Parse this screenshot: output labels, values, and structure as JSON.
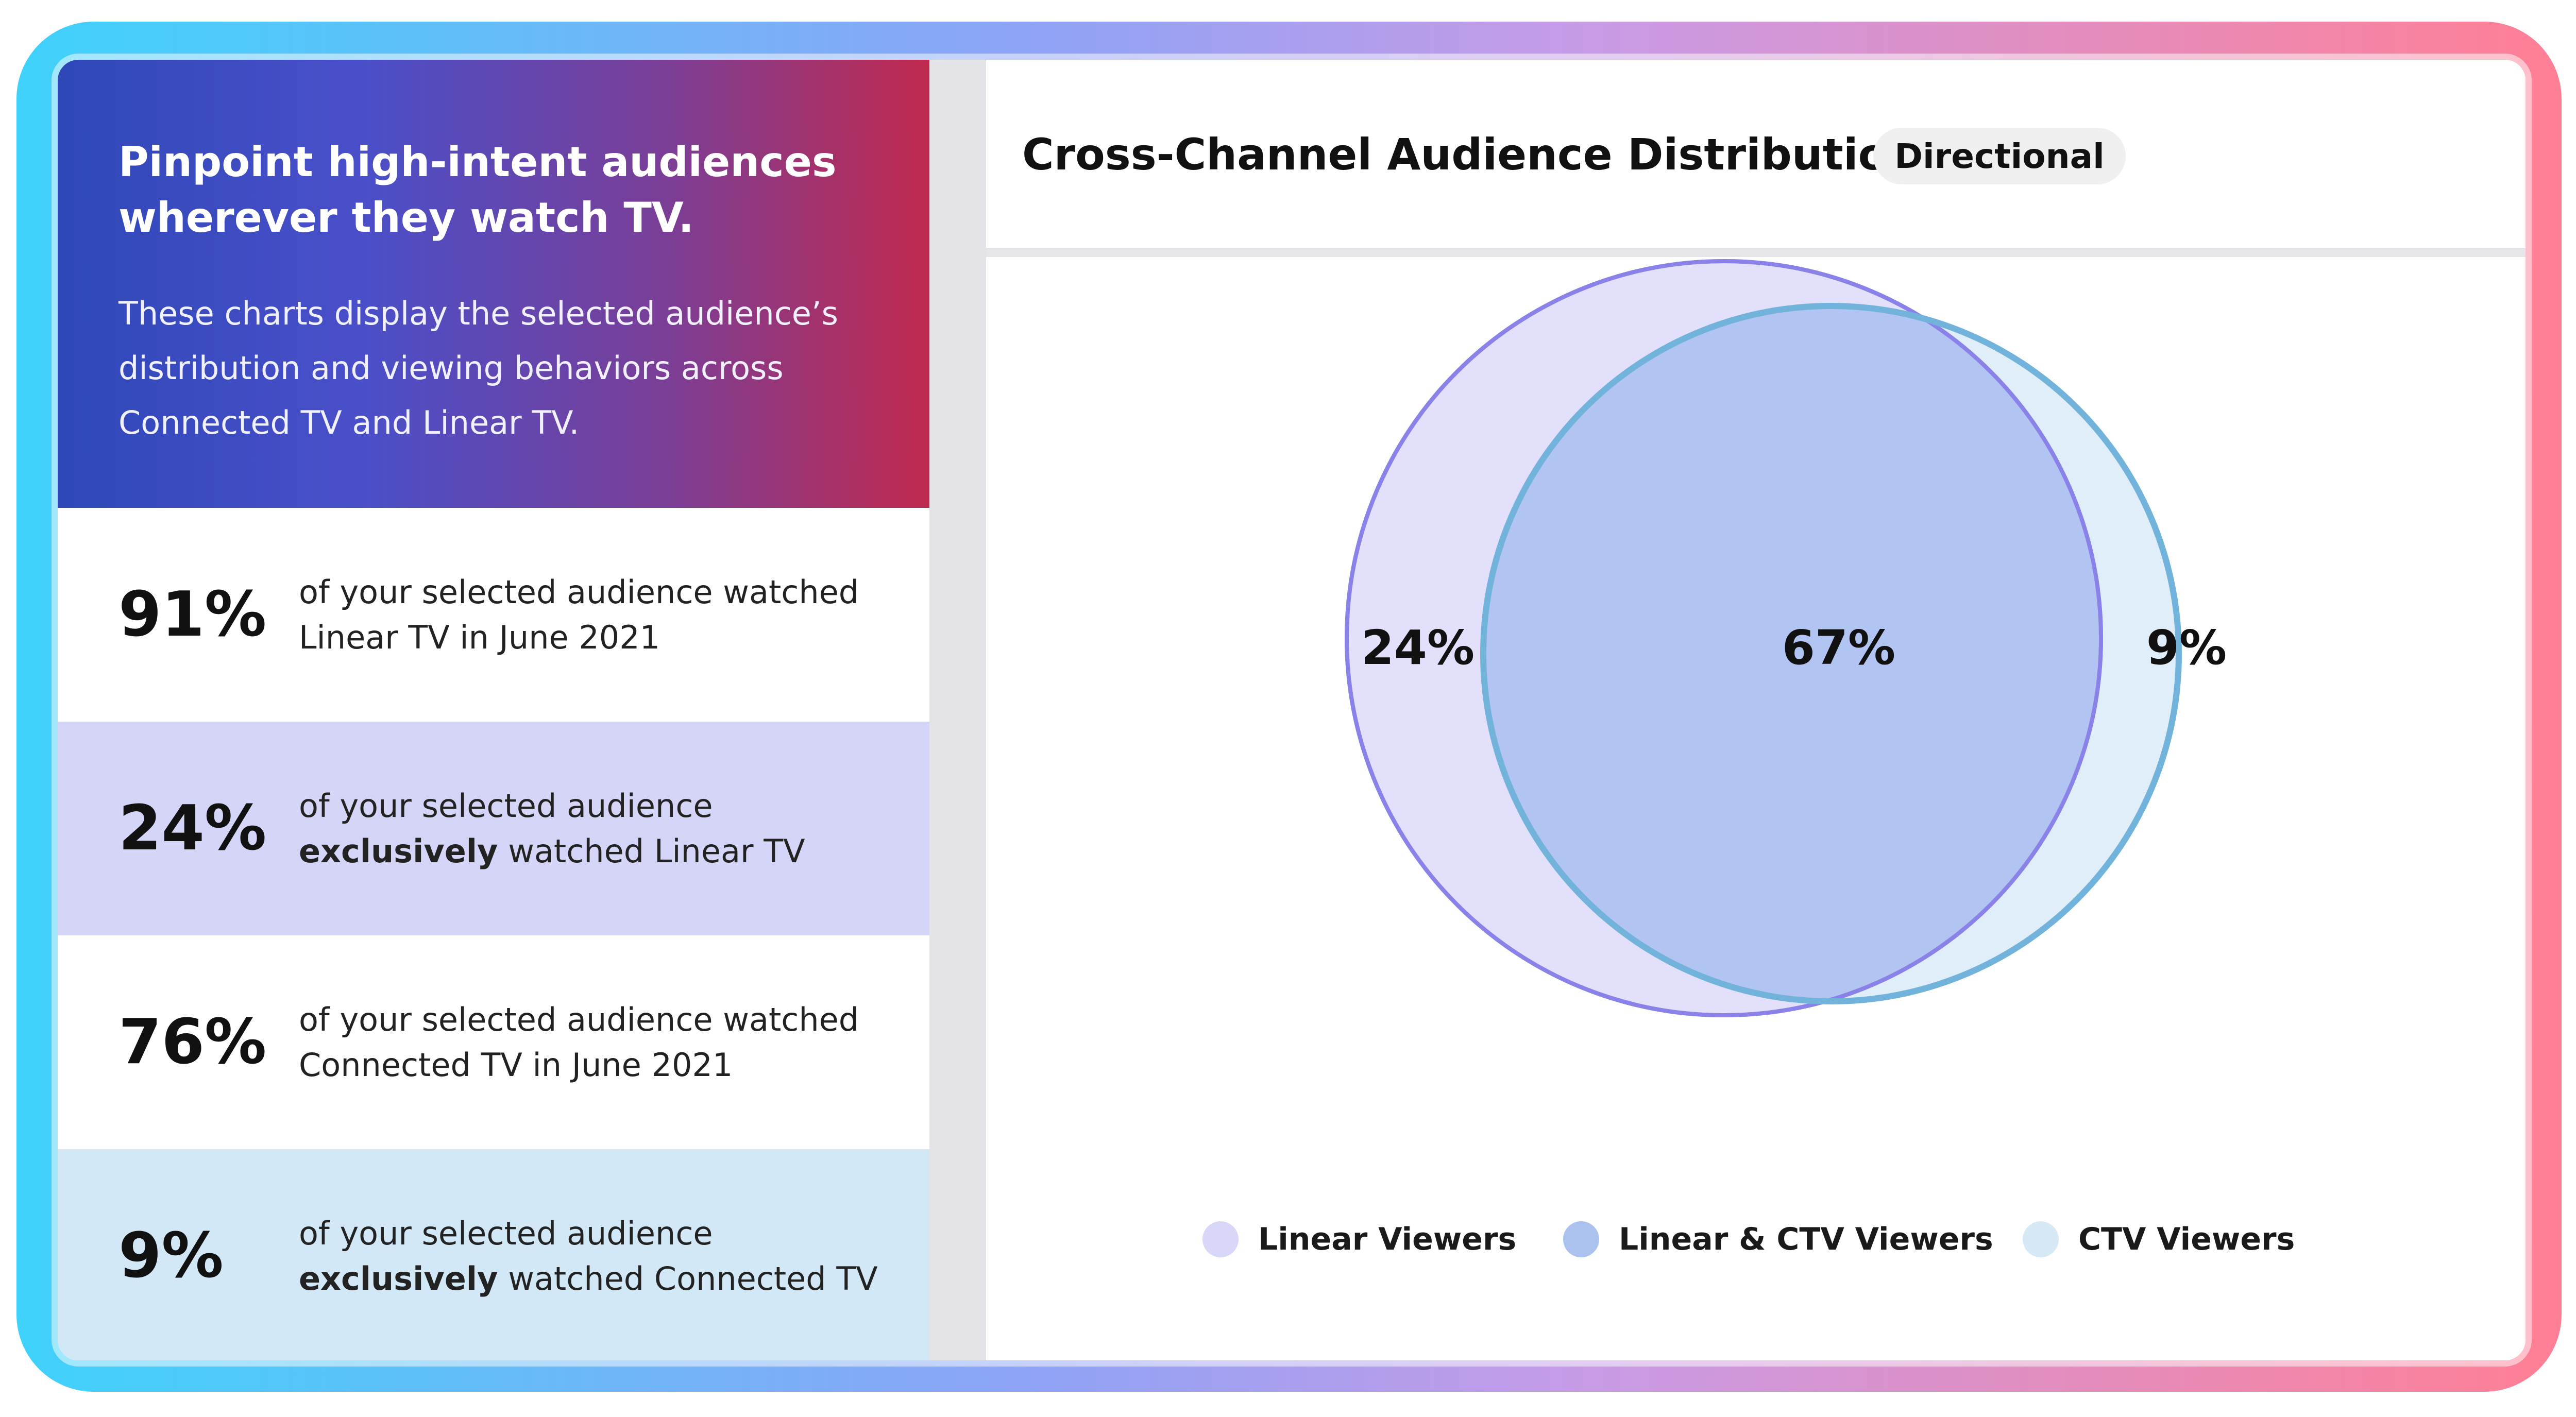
{
  "header": {
    "title": "Pinpoint high-intent audiences wherever they watch TV.",
    "description": "These charts display the selected audience’s distribution and viewing behaviors across Connected TV and Linear TV."
  },
  "stats": [
    {
      "value": "91%",
      "text_pre": "of your selected audience watched Linear TV in June 2021",
      "text_bold": "",
      "text_post": "",
      "bg": "#ffffff"
    },
    {
      "value": "24%",
      "text_pre": "of your selected audience ",
      "text_bold": "exclusively",
      "text_post": " watched Linear TV",
      "bg": "#d5d5f7"
    },
    {
      "value": "76%",
      "text_pre": "of your selected audience watched Connected TV in June 2021",
      "text_bold": "",
      "text_post": "",
      "bg": "#ffffff"
    },
    {
      "value": "9%",
      "text_pre": "of your selected audience ",
      "text_bold": "exclusively",
      "text_post": " watched Connected TV",
      "bg": "#d3e8f7"
    }
  ],
  "chart_panel": {
    "title": "Cross-Channel Audience Distribution",
    "badge": "Directional"
  },
  "chart_data": {
    "type": "venn",
    "sets": [
      {
        "name": "Linear Viewers",
        "exclusive_pct": 24,
        "label": "24%",
        "fill": "#e2e0fb",
        "stroke": "#8a82e8"
      },
      {
        "name": "CTV Viewers",
        "exclusive_pct": 9,
        "label": "9%",
        "fill": "#dfeef9",
        "stroke": "#72b3dc"
      }
    ],
    "intersection": {
      "name": "Linear & CTV Viewers",
      "pct": 67,
      "label": "67%",
      "fill": "#b2c4f1"
    },
    "legend": [
      {
        "label": "Linear Viewers",
        "color": "#d9d7f7"
      },
      {
        "label": "Linear & CTV Viewers",
        "color": "#abc2ee"
      },
      {
        "label": "CTV Viewers",
        "color": "#d8e9f6"
      }
    ],
    "legend_position": "bottom"
  }
}
